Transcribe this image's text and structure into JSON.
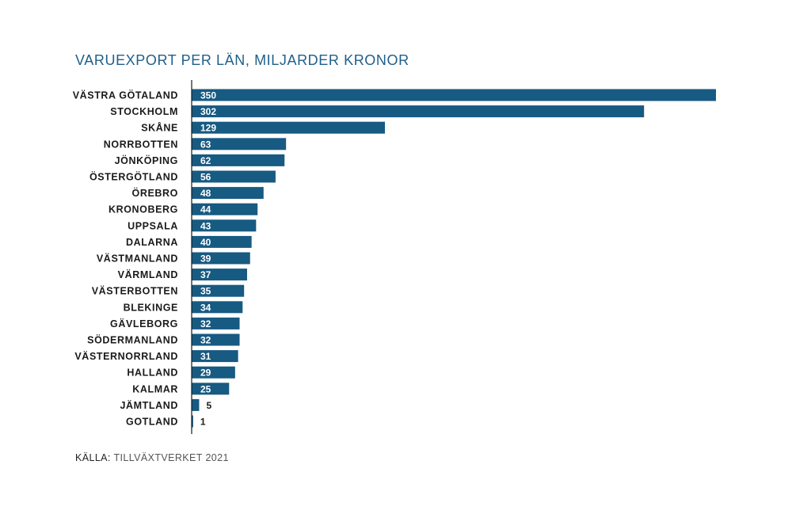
{
  "title": "VARUEXPORT PER LÄN, MILJARDER KRONOR",
  "source": {
    "prefix": "KÄLLA:",
    "text": "TILLVÄXTVERKET 2021"
  },
  "colors": {
    "bar": "#175a82",
    "axis": "#1a1a1a",
    "label_inside": "#ffffff",
    "label_outside": "#1a1a1a",
    "title": "#1f5f8b"
  },
  "chart_data": {
    "type": "bar",
    "orientation": "horizontal",
    "title": "VARUEXPORT PER LÄN, MILJARDER KRONOR",
    "xlabel": "",
    "ylabel": "",
    "categories": [
      "VÄSTRA GÖTALAND",
      "STOCKHOLM",
      "SKÅNE",
      "NORRBOTTEN",
      "JÖNKÖPING",
      "ÖSTERGÖTLAND",
      "ÖREBRO",
      "KRONOBERG",
      "UPPSALA",
      "DALARNA",
      "VÄSTMANLAND",
      "VÄRMLAND",
      "VÄSTERBOTTEN",
      "BLEKINGE",
      "GÄVLEBORG",
      "SÖDERMANLAND",
      "VÄSTERNORRLAND",
      "HALLAND",
      "KALMAR",
      "JÄMTLAND",
      "GOTLAND"
    ],
    "values": [
      350,
      302,
      129,
      63,
      62,
      56,
      48,
      44,
      43,
      40,
      39,
      37,
      35,
      34,
      32,
      32,
      31,
      29,
      25,
      5,
      1
    ],
    "xlim": [
      0,
      350
    ],
    "grid": false,
    "legend": "none",
    "data_labels": true
  }
}
